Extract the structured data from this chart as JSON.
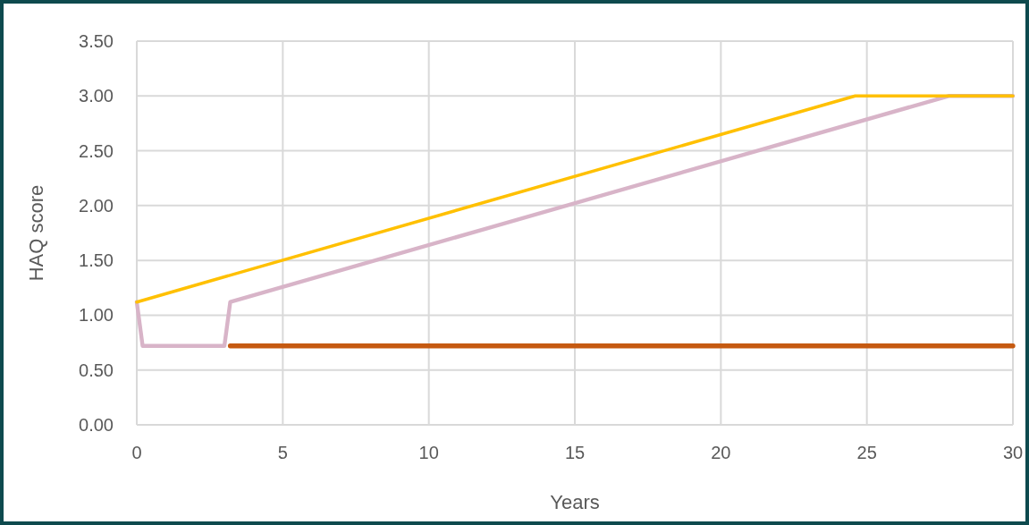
{
  "chart_data": {
    "type": "line",
    "xlabel": "Years",
    "ylabel": "HAQ score",
    "xlim": [
      0,
      30
    ],
    "xticks": [
      0,
      5,
      10,
      15,
      20,
      25,
      30
    ],
    "ylim": [
      0,
      3.5
    ],
    "yticks": [
      {
        "value": 0,
        "label": "0.00"
      },
      {
        "value": 0.5,
        "label": "0.50"
      },
      {
        "value": 1,
        "label": "1.00"
      },
      {
        "value": 1.5,
        "label": "1.50"
      },
      {
        "value": 2,
        "label": "2.00"
      },
      {
        "value": 2.5,
        "label": "2.50"
      },
      {
        "value": 3,
        "label": "3.00"
      },
      {
        "value": 3.5,
        "label": "3.50"
      }
    ],
    "grid": true,
    "line_style": "solid",
    "marker": "none",
    "series": [
      {
        "color": "#c55a11",
        "x": [
          3.2,
          30
        ],
        "values": [
          0.72,
          0.72
        ]
      },
      {
        "color": "#d8b4c8",
        "x": [
          0,
          0.2,
          3.0,
          3.2,
          27.8,
          30
        ],
        "values": [
          1.12,
          0.72,
          0.72,
          1.12,
          3.0,
          3.0
        ]
      },
      {
        "color": "#ffc000",
        "x": [
          0,
          24.6,
          30
        ],
        "values": [
          1.12,
          3.0,
          3.0
        ]
      }
    ]
  }
}
